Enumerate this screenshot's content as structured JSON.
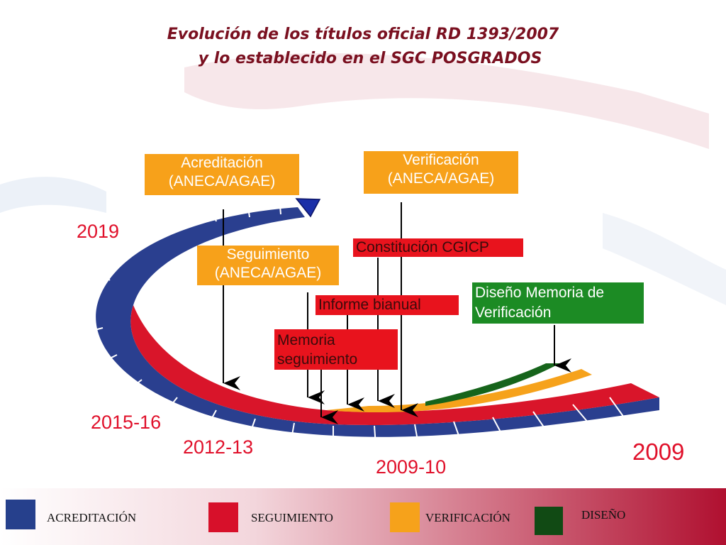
{
  "title": {
    "line1": "Evolución de los títulos oficial RD 1393/2007",
    "line2": "y lo establecido en el SGC POSGRADOS"
  },
  "boxes": {
    "acreditacion": [
      "Acreditación",
      "(ANECA/AGAE)"
    ],
    "verificacion": [
      "Verificación",
      "(ANECA/AGAE)"
    ],
    "seguimiento": [
      "Seguimiento",
      "(ANECA/AGAE)"
    ],
    "constitucion": "Constitución CGICP",
    "informe": "Informe bianual",
    "memoria": [
      "Memoria",
      "seguimiento"
    ],
    "diseno": [
      "Diseño Memoria de",
      "Verificación"
    ]
  },
  "years": {
    "y2019": "2019",
    "y2015": "2015-16",
    "y2012": "2012-13",
    "y2009": "2009",
    "y200910": "2009-10"
  },
  "legend": [
    {
      "label": "ACREDITACIÓN",
      "color": "#26408c"
    },
    {
      "label": "SEGUIMIENTO",
      "color": "#d7102a"
    },
    {
      "label": "VERIFICACIÓN",
      "color": "#f6a21b"
    },
    {
      "label": "DISEÑO",
      "color": "#114a14"
    }
  ],
  "colors": {
    "arc_blue": "#2a3f8f",
    "arc_red": "#d9152a",
    "arc_orange": "#f6a21b",
    "arc_green": "#16641b",
    "footer_band": "#b01030"
  }
}
